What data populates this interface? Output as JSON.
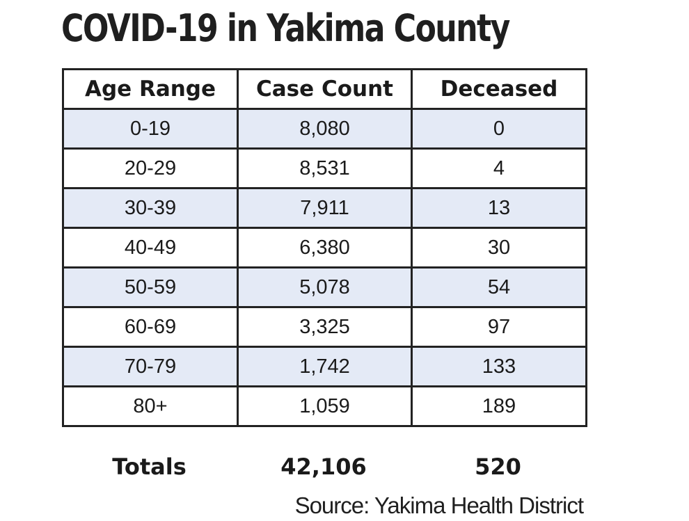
{
  "title": "COVID-19 in Yakima County",
  "chart_data": {
    "type": "table",
    "title": "COVID-19 in Yakima County",
    "columns": [
      "Age Range",
      "Case Count",
      "Deceased"
    ],
    "rows": [
      [
        "0-19",
        "8,080",
        "0"
      ],
      [
        "20-29",
        "8,531",
        "4"
      ],
      [
        "30-39",
        "7,911",
        "13"
      ],
      [
        "40-49",
        "6,380",
        "30"
      ],
      [
        "50-59",
        "5,078",
        "54"
      ],
      [
        "60-69",
        "3,325",
        "97"
      ],
      [
        "70-79",
        "1,742",
        "133"
      ],
      [
        "80+",
        "1,059",
        "189"
      ]
    ],
    "totals": {
      "label": "Totals",
      "case_count": "42,106",
      "deceased": "520"
    },
    "source": "Source: Yakima Health District"
  },
  "colors": {
    "row_shade": "#e4eaf6",
    "border": "#222222"
  }
}
